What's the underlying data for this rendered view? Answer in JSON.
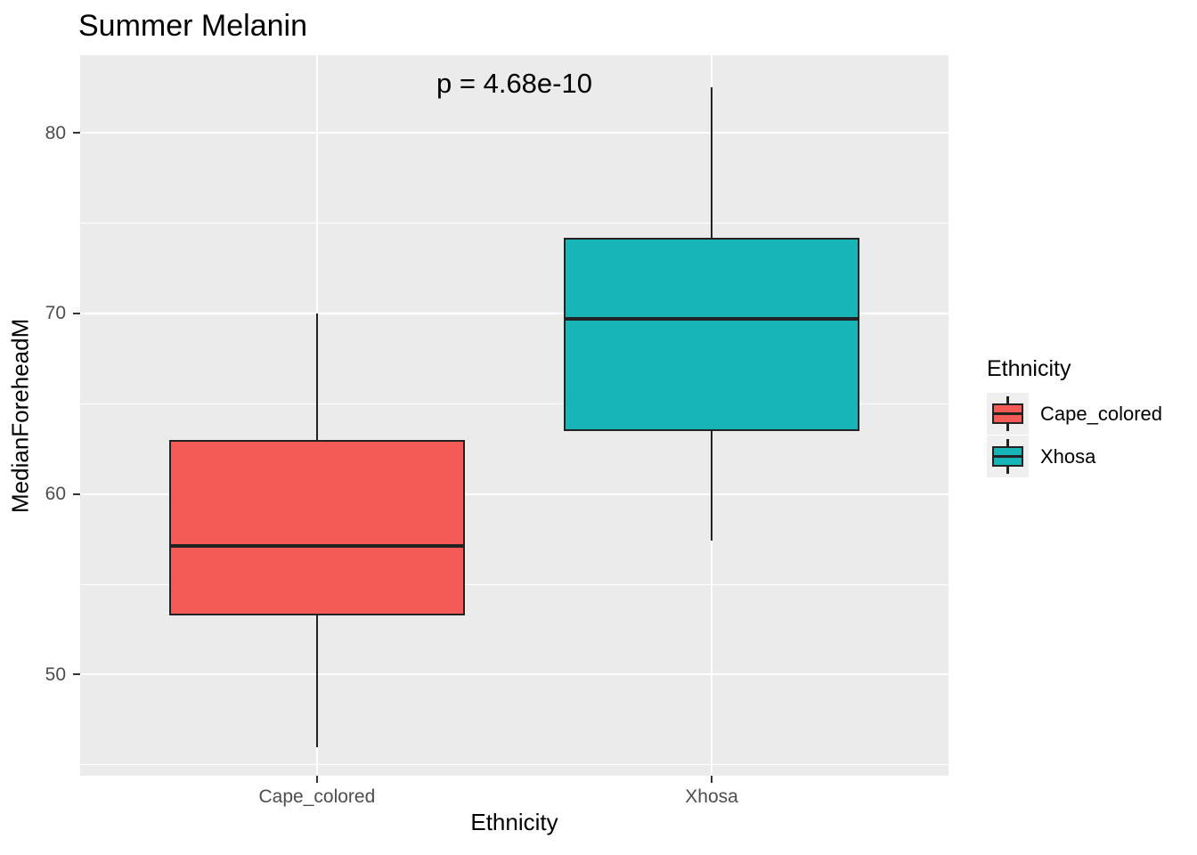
{
  "chart_data": {
    "type": "boxplot",
    "title": "Summer Melanin",
    "annotation": "p = 4.68e-10",
    "xlabel": "Ethnicity",
    "ylabel": "MedianForeheadM",
    "ylim": [
      44.4,
      84.3
    ],
    "yticks_major": [
      50,
      60,
      70,
      80
    ],
    "yticks_minor": [
      45,
      55,
      65,
      75
    ],
    "categories": [
      "Cape_colored",
      "Xhosa"
    ],
    "series": [
      {
        "name": "Cape_colored",
        "color": "#F45B57",
        "whisker_low": 46.0,
        "q1": 53.3,
        "median": 57.1,
        "q3": 63.0,
        "whisker_high": 70.0
      },
      {
        "name": "Xhosa",
        "color": "#17B4B8",
        "whisker_low": 57.4,
        "q1": 63.5,
        "median": 69.7,
        "q3": 74.2,
        "whisker_high": 82.5
      }
    ],
    "legend": {
      "title": "Ethnicity",
      "position": "right",
      "entries": [
        {
          "label": "Cape_colored",
          "color": "#F45B57"
        },
        {
          "label": "Xhosa",
          "color": "#17B4B8"
        }
      ]
    },
    "grid": true,
    "colors": {
      "background": "#FFFFFF",
      "panel_bg": "#EBEBEB",
      "grid": "#FFFFFF",
      "box_border": "#222222",
      "median": "#222222",
      "axis_text": "#4D4D4D",
      "tick": "#333333",
      "text": "#000000",
      "legend_key_bg": "#EFEFEF"
    }
  }
}
